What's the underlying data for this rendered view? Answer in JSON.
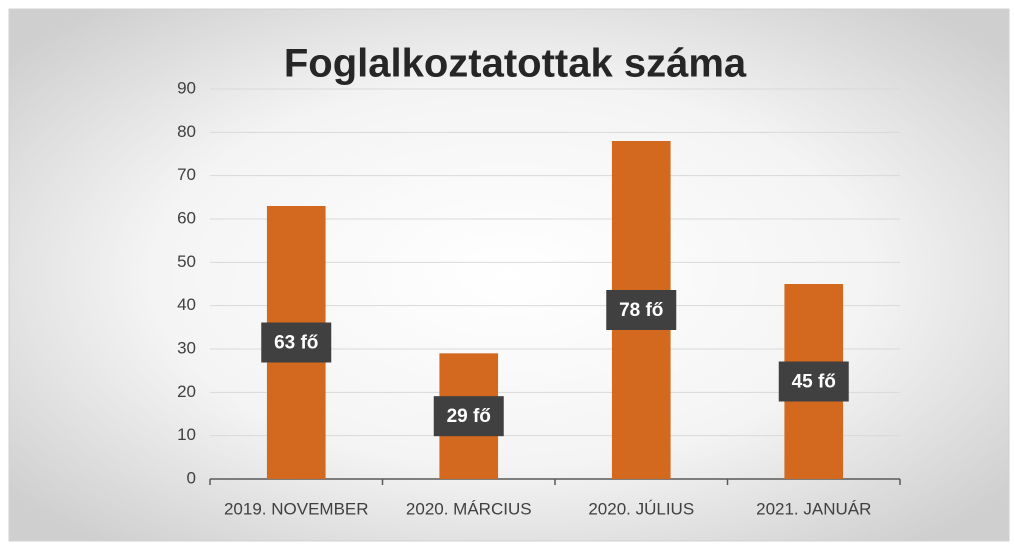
{
  "chart_data": {
    "type": "bar",
    "title": "Foglalkoztatottak száma",
    "categories": [
      "2019. NOVEMBER",
      "2020. MÁRCIUS",
      "2020. JÚLIUS",
      "2021. JANUÁR"
    ],
    "values": [
      63,
      29,
      78,
      45
    ],
    "value_labels": [
      "63 fő",
      "29 fő",
      "78 fő",
      "45 fő"
    ],
    "color": "#d2691e",
    "ylim": [
      0,
      90
    ],
    "yticks": [
      0,
      10,
      20,
      30,
      40,
      50,
      60,
      70,
      80,
      90
    ],
    "grid": true
  }
}
